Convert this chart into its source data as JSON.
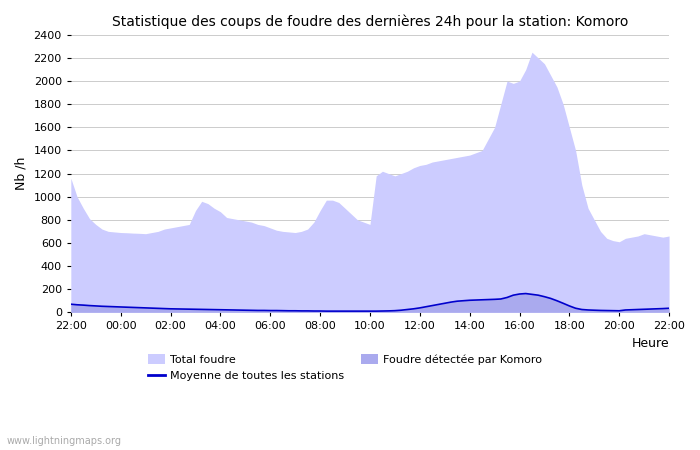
{
  "title": "Statistique des coups de foudre des dernières 24h pour la station: Komoro",
  "xlabel": "Heure",
  "ylabel": "Nb /h",
  "watermark": "www.lightningmaps.org",
  "x_ticks": [
    "22:00",
    "00:00",
    "02:00",
    "04:00",
    "06:00",
    "08:00",
    "10:00",
    "12:00",
    "14:00",
    "16:00",
    "18:00",
    "20:00",
    "22:00"
  ],
  "ylim": [
    0,
    2400
  ],
  "yticks": [
    0,
    200,
    400,
    600,
    800,
    1000,
    1200,
    1400,
    1600,
    1800,
    2000,
    2200,
    2400
  ],
  "total_foudre_color": "#ccccff",
  "komoro_color": "#aaaaee",
  "mean_color": "#0000cc",
  "background_color": "#ffffff",
  "legend_total": "Total foudre",
  "legend_komoro": "Foudre détectée par Komoro",
  "legend_mean": "Moyenne de toutes les stations",
  "n_points": 97,
  "total_foudre": [
    1160,
    1000,
    900,
    810,
    760,
    720,
    700,
    695,
    690,
    688,
    685,
    683,
    680,
    690,
    700,
    720,
    730,
    740,
    750,
    760,
    880,
    960,
    940,
    900,
    870,
    820,
    810,
    800,
    790,
    780,
    760,
    750,
    730,
    710,
    700,
    695,
    690,
    700,
    720,
    780,
    880,
    970,
    970,
    950,
    900,
    850,
    800,
    780,
    760,
    1180,
    1220,
    1200,
    1180,
    1200,
    1220,
    1250,
    1270,
    1280,
    1300,
    1310,
    1320,
    1330,
    1340,
    1350,
    1360,
    1380,
    1400,
    1500,
    1600,
    1800,
    2000,
    1980,
    2000,
    2100,
    2250,
    2200,
    2150,
    2050,
    1950,
    1800,
    1600,
    1400,
    1100,
    900,
    800,
    700,
    640,
    620,
    610,
    640,
    650,
    660,
    680,
    670,
    660,
    650,
    660
  ],
  "komoro_foudre": [
    70,
    65,
    62,
    58,
    55,
    52,
    50,
    48,
    46,
    44,
    42,
    40,
    38,
    36,
    34,
    32,
    30,
    29,
    28,
    27,
    26,
    25,
    24,
    23,
    22,
    21,
    20,
    19,
    18,
    17,
    16,
    16,
    15,
    15,
    14,
    13,
    13,
    12,
    12,
    11,
    11,
    10,
    10,
    10,
    10,
    10,
    10,
    10,
    10,
    10,
    11,
    12,
    14,
    18,
    24,
    30,
    38,
    48,
    58,
    68,
    78,
    88,
    96,
    100,
    104,
    106,
    108,
    110,
    112,
    115,
    128,
    148,
    158,
    162,
    155,
    148,
    135,
    120,
    100,
    78,
    55,
    35,
    24,
    20,
    18,
    16,
    15,
    14,
    13,
    20,
    22,
    24,
    26,
    28,
    30,
    32,
    35
  ],
  "mean_line": [
    70,
    65,
    62,
    58,
    55,
    52,
    50,
    48,
    46,
    44,
    42,
    40,
    38,
    36,
    34,
    32,
    30,
    29,
    28,
    27,
    26,
    25,
    24,
    23,
    22,
    21,
    20,
    19,
    18,
    17,
    16,
    16,
    15,
    15,
    14,
    13,
    13,
    12,
    12,
    11,
    11,
    10,
    10,
    10,
    10,
    10,
    10,
    10,
    10,
    10,
    11,
    12,
    14,
    18,
    24,
    30,
    38,
    48,
    58,
    68,
    78,
    88,
    96,
    100,
    104,
    106,
    108,
    110,
    112,
    115,
    128,
    148,
    158,
    162,
    155,
    148,
    135,
    120,
    100,
    78,
    55,
    35,
    24,
    20,
    18,
    16,
    15,
    14,
    13,
    20,
    22,
    24,
    26,
    28,
    30,
    32,
    35
  ]
}
